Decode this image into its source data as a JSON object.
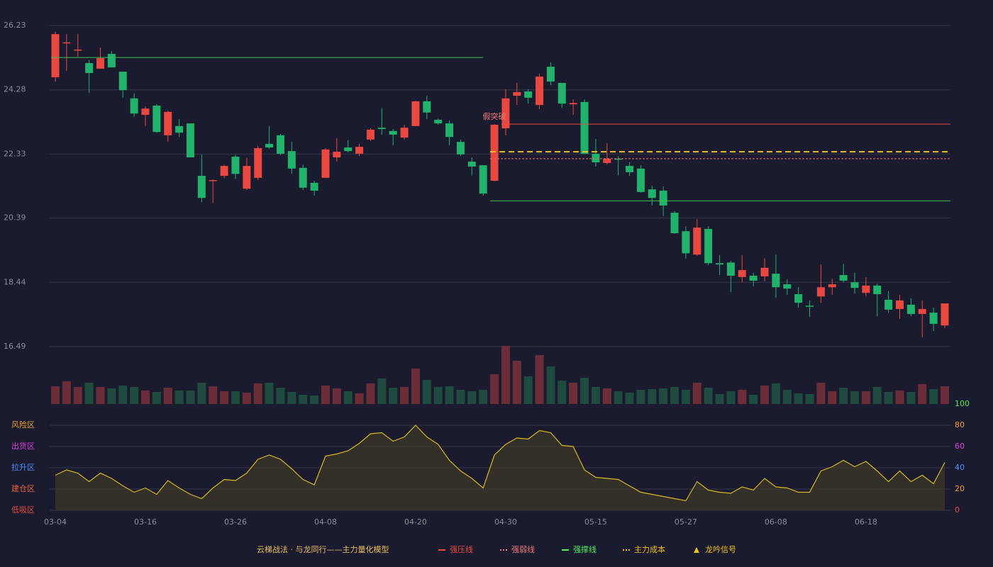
{
  "chart_data": [
    {
      "type": "candlestick",
      "open": [
        24.66,
        25.7,
        25.48,
        25.09,
        24.92,
        25.37,
        24.83,
        24.02,
        23.52,
        23.8,
        22.9,
        23.18,
        23.26,
        21.67,
        21.52,
        21.67,
        22.25,
        21.28,
        21.61,
        22.64,
        22.9,
        22.42,
        21.91,
        21.46,
        21.61,
        22.23,
        22.53,
        22.34,
        22.77,
        23.13,
        23.03,
        22.83,
        23.18,
        23.93,
        23.37,
        23.26,
        22.7,
        22.1,
        21.99,
        21.52,
        23.11,
        24.1,
        24.23,
        23.82,
        24.98,
        24.49,
        23.84,
        23.91,
        22.34,
        22.06,
        22.19,
        21.97,
        21.89,
        21.26,
        21.22,
        20.55,
        19.99,
        19.28,
        20.06,
        19.02,
        19.04,
        18.6,
        18.64,
        18.62,
        18.7,
        18.38,
        18.08,
        17.73,
        18.01,
        18.29,
        18.66,
        18.44,
        18.12,
        18.34,
        17.91,
        17.63,
        17.76,
        17.48,
        17.52,
        17.13
      ],
      "high": [
        26.04,
        25.97,
        25.97,
        25.18,
        25.56,
        25.46,
        24.83,
        24.17,
        23.78,
        23.85,
        23.65,
        23.39,
        23.26,
        22.31,
        21.56,
        22.01,
        22.31,
        22.22,
        22.58,
        23.18,
        22.94,
        22.7,
        22.01,
        21.52,
        22.51,
        22.81,
        22.75,
        22.64,
        23.11,
        23.73,
        23.09,
        23.22,
        23.95,
        24.1,
        23.41,
        23.35,
        22.77,
        22.23,
        21.99,
        23.24,
        24.3,
        24.49,
        24.3,
        24.77,
        25.11,
        24.49,
        23.99,
        23.99,
        22.79,
        22.66,
        22.27,
        22.08,
        21.99,
        21.37,
        21.35,
        20.6,
        20.14,
        20.36,
        20.14,
        19.26,
        19.09,
        19.26,
        18.73,
        19.17,
        19.28,
        18.53,
        18.29,
        17.89,
        18.98,
        18.55,
        19.0,
        18.73,
        18.6,
        18.4,
        18.17,
        18.06,
        17.95,
        17.89,
        17.67,
        17.8
      ],
      "low": [
        24.53,
        24.85,
        25.28,
        24.19,
        24.92,
        24.96,
        24.04,
        23.46,
        23.18,
        22.98,
        22.7,
        22.85,
        22.23,
        20.87,
        20.85,
        21.6,
        21.58,
        21.24,
        21.54,
        22.49,
        22.3,
        21.73,
        21.24,
        21.07,
        21.61,
        22.1,
        22.38,
        22.27,
        22.73,
        22.92,
        22.6,
        22.77,
        23.18,
        23.39,
        23.22,
        22.6,
        22.27,
        21.69,
        21.07,
        21.5,
        22.9,
        23.82,
        23.86,
        23.69,
        24.42,
        23.73,
        23.52,
        22.34,
        21.95,
        22.01,
        21.69,
        21.67,
        21.16,
        20.77,
        20.45,
        19.91,
        19.15,
        19.24,
        18.96,
        18.66,
        18.14,
        18.44,
        18.32,
        18.47,
        17.97,
        18.06,
        17.67,
        17.39,
        17.82,
        18.06,
        18.44,
        18.1,
        18.01,
        17.41,
        17.52,
        17.33,
        17.41,
        16.77,
        16.96,
        17.05
      ],
      "close": [
        25.97,
        25.72,
        25.5,
        24.79,
        25.24,
        24.96,
        24.27,
        23.56,
        23.71,
        23.0,
        23.61,
        22.98,
        22.23,
        21.0,
        21.54,
        21.97,
        21.73,
        21.97,
        22.51,
        22.53,
        22.34,
        21.89,
        21.31,
        21.22,
        22.47,
        22.4,
        22.42,
        22.55,
        23.07,
        23.09,
        22.92,
        23.13,
        23.93,
        23.59,
        23.26,
        22.85,
        22.32,
        21.95,
        21.13,
        23.22,
        24.02,
        24.21,
        24.04,
        24.68,
        24.53,
        23.86,
        23.88,
        22.34,
        22.08,
        22.19,
        22.16,
        21.78,
        21.18,
        21.0,
        20.77,
        19.93,
        19.32,
        20.1,
        19.02,
        18.98,
        18.64,
        18.81,
        18.49,
        18.88,
        18.29,
        18.25,
        17.82,
        17.71,
        18.29,
        18.38,
        18.49,
        18.27,
        18.34,
        18.08,
        17.61,
        17.89,
        17.48,
        17.63,
        17.18,
        17.8
      ],
      "up_color": "#e8483f",
      "down_color": "#21b26b",
      "ylim": [
        16.49,
        26.23
      ],
      "yticks": [
        {
          "value": 26.23,
          "label": "26.23"
        },
        {
          "value": 24.28,
          "label": "24.28"
        },
        {
          "value": 22.33,
          "label": "22.33"
        },
        {
          "value": 20.39,
          "label": "20.39"
        },
        {
          "value": 18.44,
          "label": "18.44"
        },
        {
          "value": 16.49,
          "label": "16.49"
        }
      ],
      "grid": true,
      "lines": [
        {
          "value": 25.26,
          "from": 0,
          "to": 38,
          "color": "#3fbf4f",
          "dash": false
        },
        {
          "value": 23.24,
          "from": 40,
          "to": 79,
          "color": "#e8483f",
          "dash": false
        },
        {
          "value": 22.4,
          "from": 39,
          "to": 79,
          "color": "#f0c020",
          "dash": true
        },
        {
          "value": 22.19,
          "from": 39,
          "to": 79,
          "color": "#f07070",
          "dash": true
        },
        {
          "value": 20.91,
          "from": 39,
          "to": 79,
          "color": "#3fbf4f",
          "dash": false
        }
      ],
      "annotations": [
        {
          "text": "假突破",
          "index": 39,
          "value": 23.46,
          "color": "#f07878"
        }
      ],
      "legend": {
        "title": "云梯战法 · 与龙同行——主力量化模型",
        "title_color": "#e8c060",
        "items": [
          {
            "name": "强压线",
            "color": "#e8483f",
            "style": "solid"
          },
          {
            "name": "强弱线",
            "color": "#f07878",
            "style": "dashed"
          },
          {
            "name": "强撑线",
            "color": "#4fef5f",
            "style": "solid"
          },
          {
            "name": "主力成本",
            "color": "#f0c020",
            "style": "dashed"
          },
          {
            "name": "龙吟信号",
            "color": "#f0c020",
            "style": "triangle"
          }
        ]
      }
    },
    {
      "type": "bar",
      "values": [
        25,
        32,
        24,
        30,
        24,
        22,
        26,
        24,
        19,
        17,
        23,
        19,
        19,
        30,
        25,
        18,
        18,
        16,
        29,
        30,
        23,
        17,
        13,
        12,
        26,
        22,
        18,
        15,
        29,
        36,
        23,
        24,
        50,
        34,
        24,
        25,
        20,
        18,
        20,
        42,
        82,
        61,
        39,
        69,
        53,
        33,
        30,
        37,
        24,
        22,
        18,
        16,
        20,
        21,
        22,
        24,
        20,
        30,
        23,
        14,
        18,
        20,
        13,
        26,
        29,
        20,
        15,
        14,
        30,
        18,
        23,
        18,
        18,
        24,
        17,
        19,
        17,
        28,
        21,
        25
      ],
      "up_color": "#6b2e38",
      "down_color": "#1e4b3e"
    },
    {
      "type": "area",
      "categories": [
        "03-04",
        null,
        null,
        null,
        null,
        null,
        null,
        null,
        "03-16",
        null,
        null,
        null,
        null,
        null,
        null,
        null,
        "03-26",
        null,
        null,
        null,
        null,
        null,
        null,
        null,
        "04-08",
        null,
        null,
        null,
        null,
        null,
        null,
        null,
        "04-20",
        null,
        null,
        null,
        null,
        null,
        null,
        null,
        "04-30",
        null,
        null,
        null,
        null,
        null,
        null,
        null,
        "05-15",
        null,
        null,
        null,
        null,
        null,
        null,
        null,
        "05-27",
        null,
        null,
        null,
        null,
        null,
        null,
        null,
        "06-08",
        null,
        null,
        null,
        null,
        null,
        null,
        null,
        "06-18",
        null,
        null,
        null,
        null,
        null,
        null,
        null
      ],
      "values": [
        33,
        38,
        35,
        27,
        35,
        30,
        23,
        17,
        21,
        15,
        28,
        21,
        15,
        11,
        21,
        29,
        28,
        35,
        48,
        52,
        48,
        39,
        29,
        24,
        51,
        53,
        56,
        63,
        72,
        73,
        65,
        69,
        80,
        69,
        62,
        47,
        37,
        30,
        21,
        52,
        62,
        68,
        67,
        75,
        73,
        61,
        60,
        38,
        31,
        30,
        29,
        23,
        17,
        15,
        13,
        11,
        9,
        27,
        19,
        17,
        16,
        22,
        19,
        30,
        22,
        21,
        17,
        17,
        37,
        41,
        47,
        41,
        46,
        37,
        27,
        37,
        27,
        33,
        25,
        45
      ],
      "color": "#d8b820",
      "fill": "#3a3428",
      "ylim": [
        0,
        100
      ],
      "yticks": [
        0,
        20,
        40,
        60,
        80,
        100
      ],
      "ytick_colors": [
        "#e8483f",
        "#f0a030",
        "#4a90ff",
        "#e040e0",
        "#f0a030",
        "#4fef5f"
      ],
      "zones": [
        {
          "label": "风险区",
          "value": 80,
          "color": "#f0a030"
        },
        {
          "label": "出货区",
          "value": 60,
          "color": "#e040e0"
        },
        {
          "label": "拉升区",
          "value": 40,
          "color": "#4a90ff"
        },
        {
          "label": "建仓区",
          "value": 20,
          "color": "#f06040"
        },
        {
          "label": "低吸区",
          "value": 0,
          "color": "#e8483f"
        }
      ],
      "grid": true
    }
  ]
}
